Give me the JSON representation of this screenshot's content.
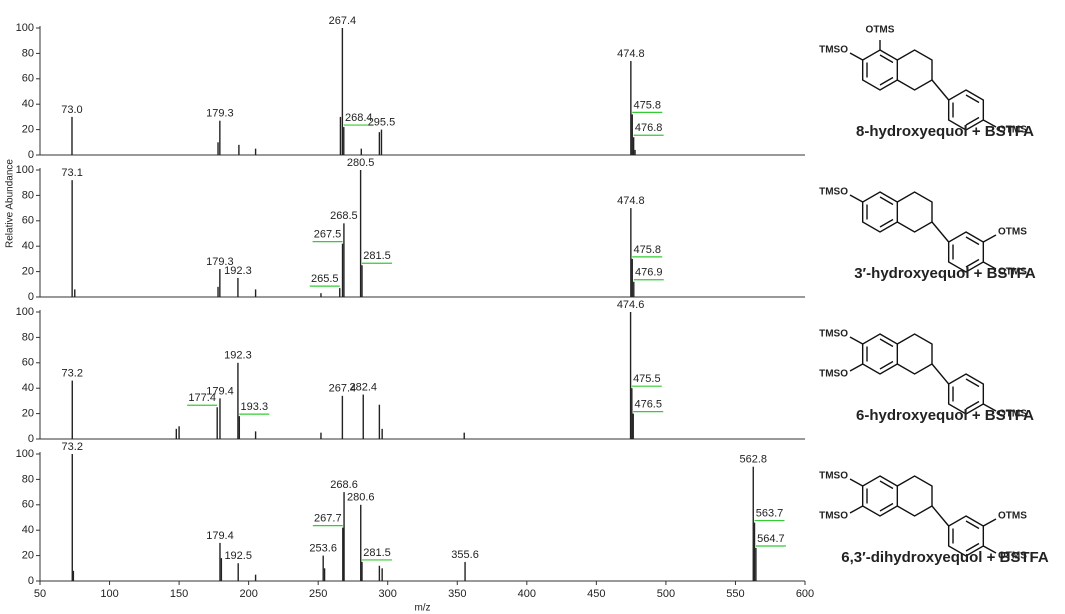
{
  "chart_data": [
    {
      "type": "bar",
      "caption": "8-hydroxyequol + BSTFA",
      "structure_labels": [
        "OTMS",
        "TMSO",
        "OTMS"
      ],
      "x": [
        73.0,
        178,
        179.3,
        193,
        205,
        266,
        267.4,
        268.4,
        281,
        294,
        295.5,
        474.8,
        475.8,
        476.8,
        477.8
      ],
      "values": [
        30,
        10,
        27,
        8,
        5,
        30,
        100,
        22,
        5,
        18,
        20,
        74,
        32,
        14,
        4
      ],
      "peak_labels": [
        "73.0",
        null,
        "179.3",
        null,
        null,
        null,
        "267.4",
        "268.4",
        null,
        null,
        "295.5",
        "474.8",
        "475.8",
        "476.8",
        null
      ],
      "color": "#222222",
      "xlim": [
        50,
        600
      ],
      "ylim": [
        0,
        100
      ],
      "yticks": [
        0,
        20,
        40,
        60,
        80,
        100
      ]
    },
    {
      "type": "bar",
      "caption": "3′-hydroxyequol + BSTFA",
      "structure_labels": [
        "TMSO",
        "OTMS",
        "OTMS"
      ],
      "ylabel": "Relative Abundance",
      "x": [
        73.1,
        75,
        178,
        179.3,
        192.3,
        205,
        252,
        265.5,
        267.5,
        268.5,
        280.5,
        281.5,
        474.8,
        475.8,
        476.9
      ],
      "values": [
        92,
        6,
        8,
        22,
        15,
        6,
        3,
        7,
        42,
        58,
        100,
        25,
        70,
        30,
        12
      ],
      "peak_labels": [
        "73.1",
        null,
        null,
        "179.3",
        "192.3",
        null,
        null,
        "265.5",
        "267.5",
        "268.5",
        "280.5",
        "281.5",
        "474.8",
        "475.8",
        "476.9"
      ],
      "color": "#222222",
      "xlim": [
        50,
        600
      ],
      "ylim": [
        0,
        100
      ],
      "yticks": [
        0,
        20,
        40,
        60,
        80,
        100
      ]
    },
    {
      "type": "bar",
      "caption": "6-hydroxyequol + BSTFA",
      "structure_labels": [
        "TMSO",
        "TMSO",
        "OTMS"
      ],
      "x": [
        73.2,
        148,
        150,
        177.4,
        179.4,
        192.3,
        193.3,
        205,
        252,
        267.4,
        282.4,
        294,
        296,
        355,
        474.6,
        475.5,
        476.5
      ],
      "values": [
        46,
        8,
        10,
        25,
        32,
        60,
        18,
        6,
        5,
        34,
        35,
        27,
        8,
        5,
        100,
        40,
        20
      ],
      "peak_labels": [
        "73.2",
        null,
        null,
        "177.4",
        "179.4",
        "192.3",
        "193.3",
        null,
        null,
        "267.4",
        "282.4",
        null,
        null,
        null,
        "474.6",
        "475.5",
        "476.5"
      ],
      "color": "#222222",
      "xlim": [
        50,
        600
      ],
      "ylim": [
        0,
        100
      ],
      "yticks": [
        0,
        20,
        40,
        60,
        80,
        100
      ]
    },
    {
      "type": "bar",
      "caption": "6,3′-dihydroxyequol + BSTFA",
      "structure_labels": [
        "TMSO",
        "TMSO",
        "OTMS",
        "OTMS"
      ],
      "xlabel": "m/z",
      "x": [
        73.2,
        74,
        179.4,
        180.4,
        192.5,
        205,
        253.6,
        254.6,
        267.7,
        268.6,
        280.6,
        281.5,
        294,
        296,
        355.6,
        562.8,
        563.7,
        564.7
      ],
      "values": [
        100,
        8,
        30,
        18,
        14,
        5,
        20,
        10,
        42,
        70,
        60,
        15,
        12,
        10,
        15,
        90,
        46,
        26
      ],
      "peak_labels": [
        "73.2",
        null,
        "179.4",
        null,
        "192.5",
        null,
        "253.6",
        null,
        "267.7",
        "268.6",
        "280.6",
        "281.5",
        null,
        null,
        "355.6",
        "562.8",
        "563.7",
        "564.7"
      ],
      "color": "#222222",
      "xlim": [
        50,
        600
      ],
      "ylim": [
        0,
        100
      ],
      "yticks": [
        0,
        20,
        40,
        60,
        80,
        100
      ],
      "xticks": [
        50,
        100,
        150,
        200,
        250,
        300,
        350,
        400,
        450,
        500,
        550,
        600
      ]
    }
  ]
}
